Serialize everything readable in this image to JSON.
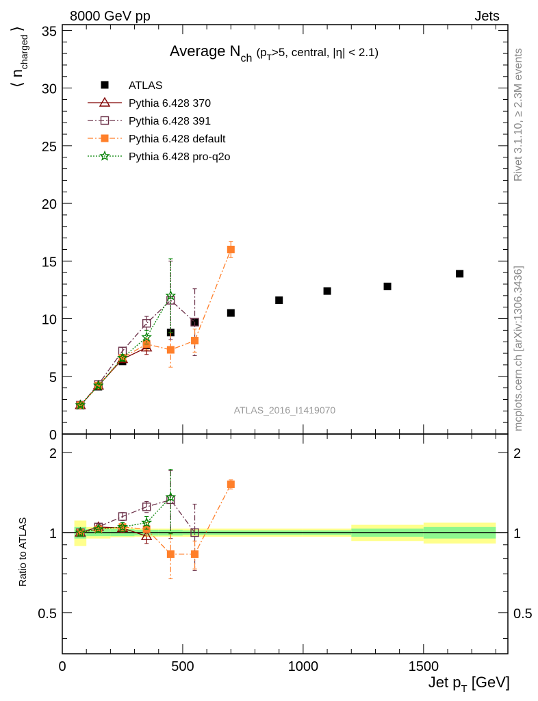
{
  "header": {
    "left": "8000 GeV pp",
    "right": "Jets"
  },
  "side_labels": {
    "rivet": "Rivet 3.1.10, ≥ 2.3M events",
    "mcplots": "mcplots.cern.ch [arXiv:1306.3436]"
  },
  "watermark": "ATLAS_2016_I1419070",
  "chart_data": [
    {
      "type": "scatter",
      "title": "Average N_ch (p_T>5, central, |η| < 2.1)",
      "title_parts": {
        "main": "Average N",
        "sub": "ch",
        "detail": "(p",
        "detail_sub": "T",
        "detail_rest": ">5, central, |η| < 2.1)"
      },
      "xlabel": "Jet p_T [GeV]",
      "xlabel_parts": {
        "main": "Jet p",
        "sub": "T",
        "rest": " [GeV]"
      },
      "ylabel": "⟨ n_charged ⟩",
      "ylabel_parts": {
        "open": "⟨ n",
        "sub": "charged",
        "close": "⟩"
      },
      "xlim": [
        0,
        1850
      ],
      "ylim": [
        0,
        35.5
      ],
      "xticks": [
        0,
        500,
        1000,
        1500
      ],
      "yticks": [
        0,
        5,
        10,
        15,
        20,
        25,
        30,
        35
      ],
      "legend_position": "top-left",
      "series": [
        {
          "name": "ATLAS",
          "color": "#000000",
          "marker": "square-filled",
          "line": "none",
          "x": [
            75,
            150,
            250,
            350,
            450,
            550,
            700,
            900,
            1100,
            1350,
            1650
          ],
          "y": [
            2.5,
            4.1,
            6.3,
            7.7,
            8.8,
            9.7,
            10.5,
            11.6,
            12.4,
            12.8,
            13.9
          ],
          "err": [
            0.1,
            0.1,
            0.15,
            0.2,
            0.2,
            0.2,
            0.2,
            0.2,
            0.2,
            0.2,
            0.2
          ]
        },
        {
          "name": "Pythia 6.428 370",
          "color": "#800000",
          "marker": "triangle-open",
          "line": "solid",
          "x": [
            75,
            150,
            250,
            350
          ],
          "y": [
            2.5,
            4.2,
            6.5,
            7.5
          ],
          "err": [
            0.1,
            0.15,
            0.3,
            0.6
          ]
        },
        {
          "name": "Pythia 6.428 391",
          "color": "#6b3048",
          "marker": "square-open",
          "line": "dashdot",
          "x": [
            75,
            150,
            250,
            350,
            450,
            550
          ],
          "y": [
            2.5,
            4.3,
            7.2,
            9.6,
            11.6,
            9.7
          ],
          "err": [
            0.1,
            0.15,
            0.3,
            0.6,
            3.4,
            2.9
          ]
        },
        {
          "name": "Pythia 6.428 default",
          "color": "#ff7f2a",
          "marker": "square-filled",
          "line": "dashdot",
          "x": [
            75,
            150,
            250,
            350,
            450,
            550,
            700
          ],
          "y": [
            2.5,
            4.2,
            6.6,
            7.8,
            7.3,
            8.1,
            16.0
          ],
          "err": [
            0.1,
            0.15,
            0.3,
            0.5,
            1.5,
            1.0,
            0.7
          ]
        },
        {
          "name": "Pythia 6.428 pro-q2o",
          "color": "#008000",
          "marker": "star-open",
          "line": "dotted",
          "x": [
            75,
            150,
            250,
            350,
            450
          ],
          "y": [
            2.5,
            4.2,
            6.6,
            8.4,
            12.0
          ],
          "err": [
            0.1,
            0.15,
            0.3,
            0.6,
            3.2
          ]
        }
      ]
    },
    {
      "type": "scatter",
      "ylabel": "Ratio to ATLAS",
      "xlim": [
        0,
        1850
      ],
      "ylim": [
        0.35,
        2.35
      ],
      "ylog": true,
      "yticks": [
        0.5,
        1,
        2
      ],
      "ytick_labels": [
        "0.5",
        "1",
        "2"
      ],
      "band_bins": [
        {
          "x0": 50,
          "x1": 100,
          "inner": 0.05,
          "outer": 0.11
        },
        {
          "x0": 100,
          "x1": 200,
          "inner": 0.03,
          "outer": 0.05
        },
        {
          "x0": 200,
          "x1": 300,
          "inner": 0.03,
          "outer": 0.04
        },
        {
          "x0": 300,
          "x1": 400,
          "inner": 0.025,
          "outer": 0.035
        },
        {
          "x0": 400,
          "x1": 500,
          "inner": 0.025,
          "outer": 0.035
        },
        {
          "x0": 500,
          "x1": 600,
          "inner": 0.02,
          "outer": 0.035
        },
        {
          "x0": 600,
          "x1": 800,
          "inner": 0.02,
          "outer": 0.035
        },
        {
          "x0": 800,
          "x1": 1000,
          "inner": 0.02,
          "outer": 0.035
        },
        {
          "x0": 1000,
          "x1": 1200,
          "inner": 0.02,
          "outer": 0.035
        },
        {
          "x0": 1200,
          "x1": 1500,
          "inner": 0.035,
          "outer": 0.07
        },
        {
          "x0": 1500,
          "x1": 1800,
          "inner": 0.05,
          "outer": 0.09
        }
      ],
      "series": [
        {
          "name": "Pythia 6.428 370",
          "x": [
            75,
            150,
            250,
            350
          ],
          "y": [
            1.0,
            1.05,
            1.04,
            0.97
          ],
          "err": [
            0.03,
            0.03,
            0.04,
            0.06
          ]
        },
        {
          "name": "Pythia 6.428 391",
          "x": [
            75,
            150,
            250,
            350,
            450,
            550
          ],
          "y": [
            1.0,
            1.05,
            1.15,
            1.25,
            1.33,
            1.0
          ],
          "err": [
            0.03,
            0.03,
            0.04,
            0.06,
            0.38,
            0.28
          ]
        },
        {
          "name": "Pythia 6.428 default",
          "x": [
            75,
            150,
            250,
            350,
            450,
            550,
            700
          ],
          "y": [
            1.0,
            1.03,
            1.05,
            1.03,
            0.83,
            0.83,
            1.52
          ],
          "err": [
            0.03,
            0.03,
            0.04,
            0.06,
            0.16,
            0.1,
            0.06
          ]
        },
        {
          "name": "Pythia 6.428 pro-q2o",
          "x": [
            75,
            150,
            250,
            350,
            450
          ],
          "y": [
            1.0,
            1.03,
            1.05,
            1.09,
            1.36
          ],
          "err": [
            0.03,
            0.03,
            0.04,
            0.06,
            0.37
          ]
        }
      ]
    }
  ]
}
